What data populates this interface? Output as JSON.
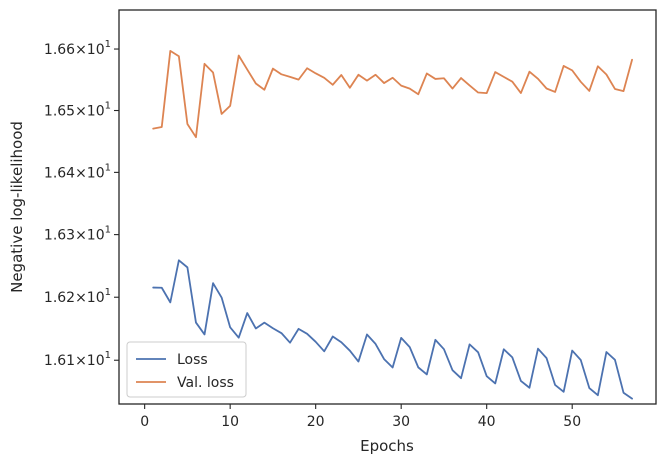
{
  "chart_data": {
    "type": "line",
    "xlabel": "Epochs",
    "ylabel": "Negative log-likelihood",
    "x_scale": "linear",
    "y_scale": "log",
    "xlim": [
      -3,
      59.8
    ],
    "ylim": [
      16.0309,
      16.6638
    ],
    "x_ticks": [
      0,
      10,
      20,
      30,
      40,
      50
    ],
    "x_tick_labels": [
      "0",
      "10",
      "20",
      "30",
      "40",
      "50"
    ],
    "y_ticks": [
      16.1,
      16.2,
      16.3,
      16.4,
      16.5,
      16.6
    ],
    "y_tick_labels": [
      {
        "mantissa": "1.61",
        "base": "10",
        "exp": "1"
      },
      {
        "mantissa": "1.62",
        "base": "10",
        "exp": "1"
      },
      {
        "mantissa": "1.63",
        "base": "10",
        "exp": "1"
      },
      {
        "mantissa": "1.64",
        "base": "10",
        "exp": "1"
      },
      {
        "mantissa": "1.65",
        "base": "10",
        "exp": "1"
      },
      {
        "mantissa": "1.66",
        "base": "10",
        "exp": "1"
      }
    ],
    "times_sign": "×",
    "grid": false,
    "legend_position": "lower-left",
    "x": [
      1,
      2,
      3,
      4,
      5,
      6,
      7,
      8,
      9,
      10,
      11,
      12,
      13,
      14,
      15,
      16,
      17,
      18,
      19,
      20,
      21,
      22,
      23,
      24,
      25,
      26,
      27,
      28,
      29,
      30,
      31,
      32,
      33,
      34,
      35,
      36,
      37,
      38,
      39,
      40,
      41,
      42,
      43,
      44,
      45,
      46,
      47,
      48,
      49,
      50,
      51,
      52,
      53,
      54,
      55,
      56,
      57
    ],
    "series": [
      {
        "name": "Loss",
        "color": "#4c72b0",
        "values": [
          16.2154,
          16.2151,
          16.1918,
          16.2589,
          16.2476,
          16.1597,
          16.1409,
          16.2224,
          16.1995,
          16.1521,
          16.1357,
          16.1748,
          16.1503,
          16.1596,
          16.1507,
          16.1429,
          16.1278,
          16.1497,
          16.1419,
          16.1292,
          16.1141,
          16.1376,
          16.1285,
          16.1151,
          16.0979,
          16.1408,
          16.1259,
          16.1018,
          16.0885,
          16.1354,
          16.1208,
          16.0887,
          16.0776,
          16.1323,
          16.1175,
          16.0842,
          16.0716,
          16.1251,
          16.1125,
          16.0748,
          16.0633,
          16.1174,
          16.1045,
          16.0673,
          16.0565,
          16.1183,
          16.1034,
          16.0609,
          16.0501,
          16.1153,
          16.1003,
          16.0561,
          16.0447,
          16.113,
          16.1007,
          16.0487,
          16.0393
        ]
      },
      {
        "name": "Val. loss",
        "color": "#dd8452",
        "values": [
          16.4706,
          16.4733,
          16.597,
          16.5883,
          16.4781,
          16.4568,
          16.5759,
          16.5617,
          16.4944,
          16.5076,
          16.5894,
          16.5665,
          16.5439,
          16.5337,
          16.5681,
          16.5588,
          16.5547,
          16.5502,
          16.5687,
          16.5604,
          16.5531,
          16.5418,
          16.5577,
          16.5369,
          16.5581,
          16.5486,
          16.5581,
          16.5446,
          16.5532,
          16.5404,
          16.5355,
          16.5264,
          16.5602,
          16.5513,
          16.5524,
          16.5357,
          16.5528,
          16.5407,
          16.5292,
          16.5282,
          16.5625,
          16.5546,
          16.5468,
          16.5283,
          16.563,
          16.5515,
          16.5357,
          16.5301,
          16.5725,
          16.5652,
          16.5466,
          16.5318,
          16.5719,
          16.5585,
          16.535,
          16.5315,
          16.5825
        ]
      }
    ]
  }
}
